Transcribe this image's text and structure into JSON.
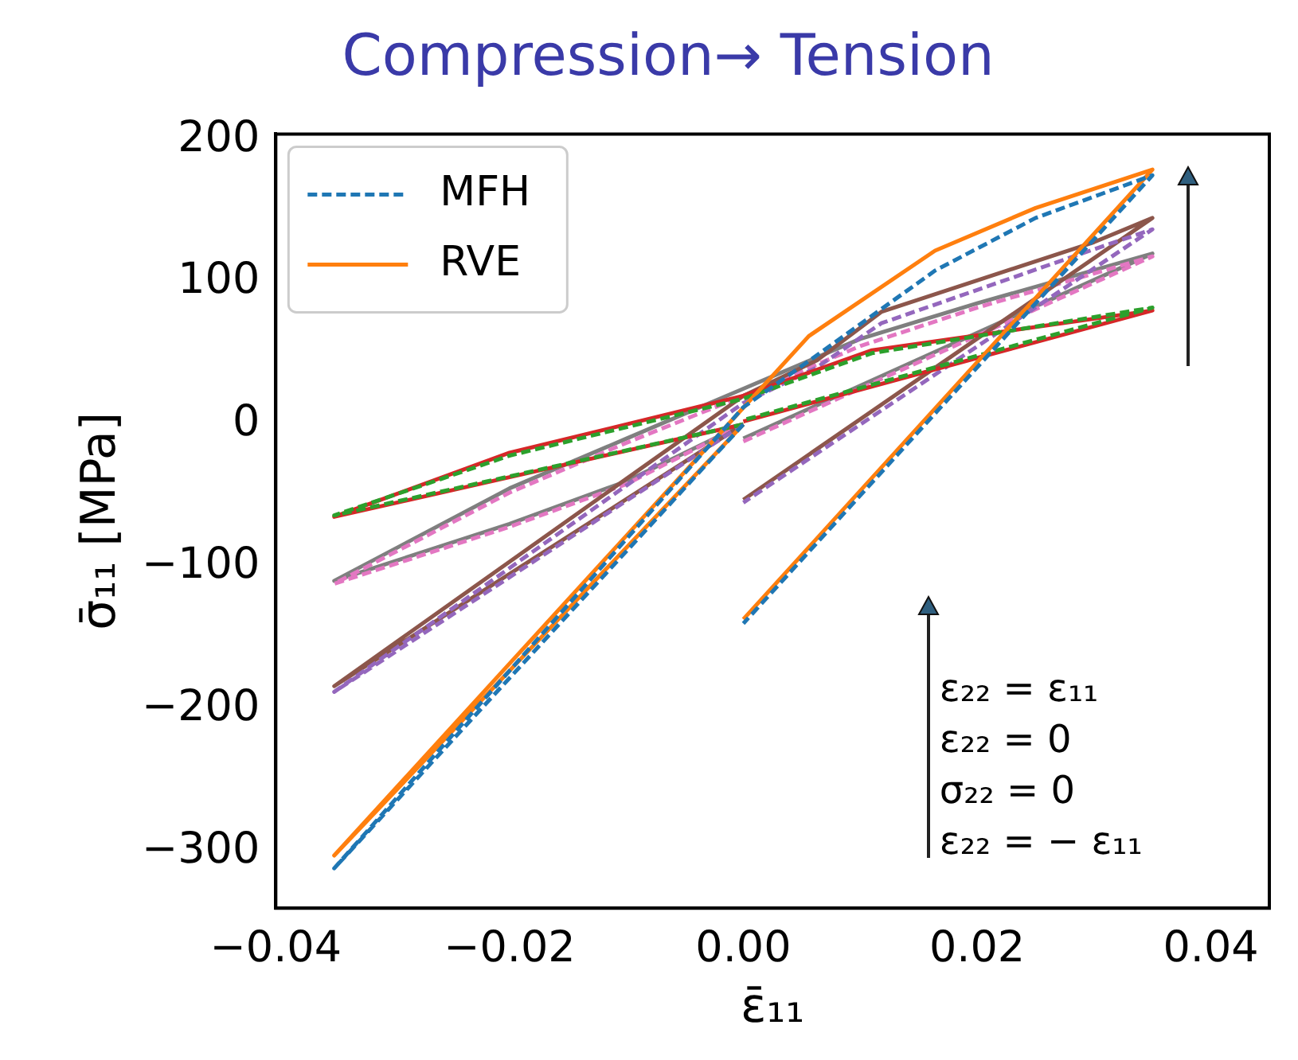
{
  "chart_data": {
    "type": "line",
    "title": "Compression→ Tension",
    "xlabel": "ε̄₁₁",
    "ylabel": "σ̄₁₁ [MPa]",
    "xlim": [
      -0.04,
      0.045
    ],
    "ylim": [
      -340,
      204
    ],
    "xticks": [
      {
        "value": -0.04,
        "label": "−0.04"
      },
      {
        "value": -0.02,
        "label": "−0.02"
      },
      {
        "value": 0,
        "label": "0.00"
      },
      {
        "value": 0.02,
        "label": "0.02"
      },
      {
        "value": 0.04,
        "label": "0.04"
      }
    ],
    "yticks": [
      {
        "value": -300,
        "label": "−300"
      },
      {
        "value": -200,
        "label": "−200"
      },
      {
        "value": -100,
        "label": "−100"
      },
      {
        "value": 0,
        "label": "0"
      },
      {
        "value": 100,
        "label": "100"
      },
      {
        "value": 200,
        "label": "200"
      }
    ],
    "grid": false,
    "legend": "top left",
    "marker": "none",
    "annotations": [
      "ε₂₂ = ε₁₁",
      "ε₂₂ = 0",
      "σ₂₂ = 0",
      "ε₂₂ = − ε₁₁"
    ],
    "series": [
      {
        "name": "MFH",
        "color": "#1f77b4",
        "line_style": "dashed",
        "x": [
          0,
          -0.035,
          0,
          0.0057,
          0.0164,
          0.025,
          0.035,
          0
        ],
        "values": [
          0,
          -312,
          12,
          45,
          108,
          145,
          175,
          -140
        ]
      },
      {
        "name": "RVE",
        "color": "#ff7f0e",
        "line_style": "solid",
        "x": [
          0,
          -0.035,
          0.0056,
          0.0164,
          0.025,
          0.035,
          0
        ],
        "values": [
          0,
          -303,
          62,
          122,
          152,
          179,
          -137
        ]
      },
      {
        "color": "#2ca02c",
        "line_style": "dashed",
        "x": [
          0,
          -0.035,
          -0.02,
          0,
          0.011,
          0.035,
          0
        ],
        "values": [
          0,
          -64,
          -22,
          18,
          50,
          82,
          3
        ]
      },
      {
        "color": "#d62728",
        "line_style": "solid",
        "x": [
          0,
          -0.035,
          -0.02,
          0,
          0.011,
          0.035,
          0
        ],
        "values": [
          0,
          -65,
          -20,
          20,
          52,
          80,
          2
        ]
      },
      {
        "color": "#9467bd",
        "line_style": "dashed",
        "x": [
          0,
          -0.035,
          0,
          0.0063,
          0.0118,
          0.03,
          0.035,
          0
        ],
        "values": [
          0,
          -188,
          15,
          40,
          71,
          123,
          137,
          -55
        ]
      },
      {
        "color": "#8c564b",
        "line_style": "solid",
        "x": [
          0,
          -0.035,
          0,
          0.0063,
          0.0118,
          0.03,
          0.035,
          0
        ],
        "values": [
          0,
          -184,
          20,
          45,
          79,
          128,
          145,
          -53
        ]
      },
      {
        "color": "#e377c2",
        "line_style": "dashed",
        "x": [
          0,
          -0.01,
          -0.02,
          -0.035,
          -0.02,
          -0.01,
          0,
          0.01,
          0.02,
          0.035,
          0
        ],
        "values": [
          0,
          -42,
          -72,
          -112,
          -48,
          -13,
          20,
          55,
          82,
          118,
          -12
        ]
      },
      {
        "color": "#7f7f7f",
        "line_style": "solid",
        "x": [
          0,
          -0.01,
          -0.02,
          -0.035,
          -0.02,
          -0.01,
          0,
          0.01,
          0.02,
          0.035,
          0
        ],
        "values": [
          0,
          -40,
          -70,
          -110,
          -45,
          -10,
          25,
          60,
          85,
          120,
          -10
        ]
      }
    ]
  }
}
